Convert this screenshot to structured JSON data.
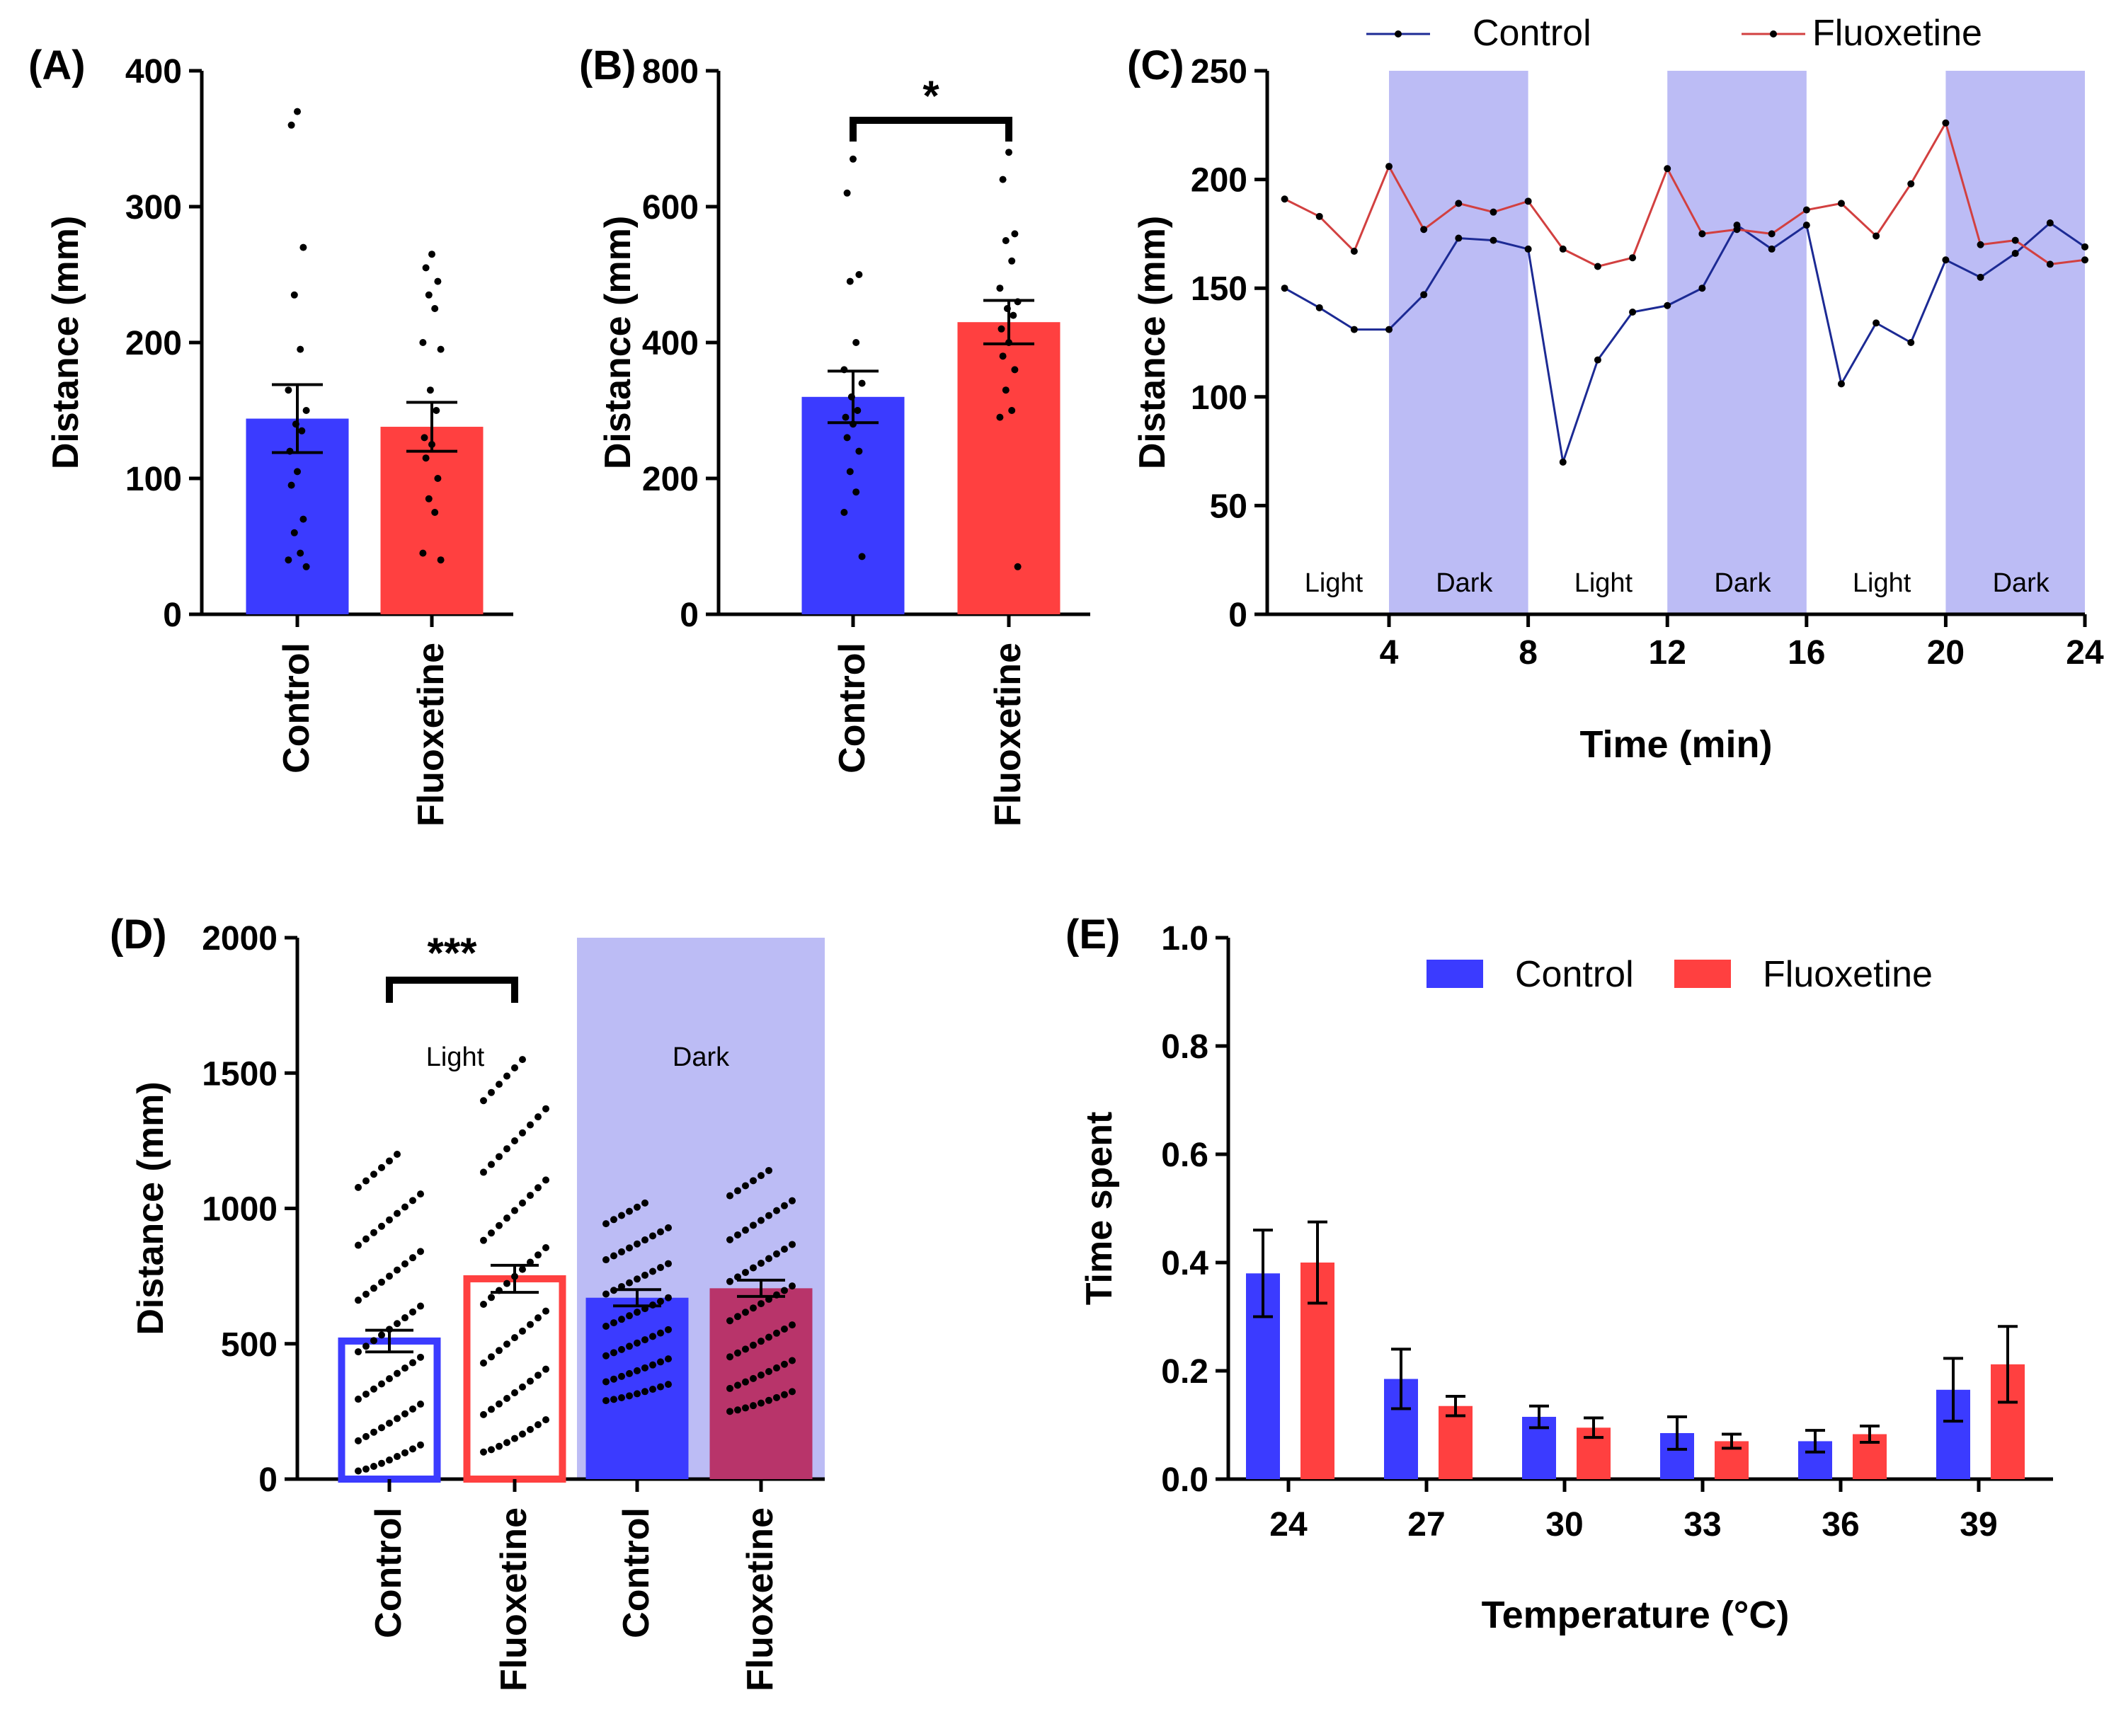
{
  "colors": {
    "control": "#3b3bff",
    "fluoxetine": "#ff4040",
    "dark_shade": "#bcbcf5",
    "control_line": "#1c2a94",
    "fluoxetine_line": "#d24040",
    "dark_fluoxetine": "#b8346a",
    "axis": "#000000"
  },
  "chart_data": [
    {
      "id": "A",
      "panel_label": "(A)",
      "type": "bar",
      "ylabel": "Distance (mm)",
      "ylim": [
        0,
        400
      ],
      "yticks": [
        0,
        100,
        200,
        300,
        400
      ],
      "categories": [
        "Control",
        "Fluoxetine"
      ],
      "values": [
        144,
        138
      ],
      "sem": [
        25,
        18
      ],
      "points": [
        [
          370,
          360,
          270,
          235,
          195,
          165,
          150,
          140,
          135,
          120,
          105,
          95,
          70,
          60,
          45,
          40,
          35
        ],
        [
          265,
          255,
          245,
          235,
          225,
          200,
          195,
          165,
          150,
          130,
          125,
          115,
          100,
          85,
          75,
          45,
          40
        ]
      ]
    },
    {
      "id": "B",
      "panel_label": "(B)",
      "type": "bar",
      "ylabel": "Distance (mm)",
      "ylim": [
        0,
        800
      ],
      "yticks": [
        0,
        200,
        400,
        600,
        800
      ],
      "categories": [
        "Control",
        "Fluoxetine"
      ],
      "values": [
        320,
        430
      ],
      "sem": [
        38,
        32
      ],
      "significance": "*",
      "points": [
        [
          670,
          620,
          500,
          490,
          400,
          360,
          340,
          320,
          300,
          290,
          280,
          260,
          240,
          210,
          180,
          150,
          85
        ],
        [
          680,
          640,
          560,
          550,
          520,
          480,
          460,
          450,
          440,
          420,
          400,
          380,
          360,
          330,
          300,
          290,
          70
        ]
      ]
    },
    {
      "id": "C",
      "panel_label": "(C)",
      "type": "line",
      "xlabel": "Time (min)",
      "ylabel": "Distance (mm)",
      "xlim": [
        0.5,
        24
      ],
      "ylim": [
        0,
        250
      ],
      "xticks": [
        4,
        8,
        12,
        16,
        20,
        24
      ],
      "yticks": [
        0,
        50,
        100,
        150,
        200,
        250
      ],
      "x": [
        1,
        2,
        3,
        4,
        5,
        6,
        7,
        8,
        9,
        10,
        11,
        12,
        13,
        14,
        15,
        16,
        17,
        18,
        19,
        20,
        21,
        22,
        23,
        24
      ],
      "series": [
        {
          "name": "Control",
          "values": [
            150,
            141,
            131,
            131,
            147,
            173,
            172,
            168,
            70,
            117,
            139,
            142,
            150,
            179,
            168,
            179,
            106,
            134,
            125,
            163,
            155,
            166,
            180,
            169
          ]
        },
        {
          "name": "Fluoxetine",
          "values": [
            191,
            183,
            167,
            206,
            177,
            189,
            185,
            190,
            168,
            160,
            164,
            205,
            175,
            177,
            175,
            186,
            189,
            174,
            198,
            226,
            170,
            172,
            161,
            163
          ]
        }
      ],
      "phases": [
        {
          "label": "Light",
          "start": 0.5,
          "end": 4,
          "dark": false
        },
        {
          "label": "Dark",
          "start": 4,
          "end": 8,
          "dark": true
        },
        {
          "label": "Light",
          "start": 8,
          "end": 12,
          "dark": false
        },
        {
          "label": "Dark",
          "start": 12,
          "end": 16,
          "dark": true
        },
        {
          "label": "Light",
          "start": 16,
          "end": 20,
          "dark": false
        },
        {
          "label": "Dark",
          "start": 20,
          "end": 24,
          "dark": true
        }
      ],
      "legend": [
        "Control",
        "Fluoxetine"
      ]
    },
    {
      "id": "D",
      "panel_label": "(D)",
      "type": "bar",
      "ylabel": "Distance (mm)",
      "ylim": [
        0,
        2000
      ],
      "yticks": [
        0,
        500,
        1000,
        1500,
        2000
      ],
      "categories": [
        "Control",
        "Fluoxetine",
        "Control",
        "Fluoxetine"
      ],
      "groups": [
        "Light",
        "Light",
        "Dark",
        "Dark"
      ],
      "group_labels": [
        "Light",
        "Dark"
      ],
      "values": [
        510,
        740,
        670,
        705
      ],
      "sem": [
        40,
        50,
        30,
        30
      ],
      "significance": "***",
      "point_counts": [
        60,
        60,
        60,
        60
      ],
      "point_spread": [
        [
          30,
          1200
        ],
        [
          100,
          1550
        ],
        [
          290,
          1020
        ],
        [
          250,
          1140
        ]
      ]
    },
    {
      "id": "E",
      "panel_label": "(E)",
      "type": "bar",
      "xlabel": "Temperature (°C)",
      "ylabel": "Time spent",
      "ylim": [
        0,
        1.0
      ],
      "yticks": [
        "0.0",
        "0.2",
        "0.4",
        "0.6",
        "0.8",
        "1.0"
      ],
      "categories": [
        "24",
        "27",
        "30",
        "33",
        "36",
        "39"
      ],
      "series": [
        {
          "name": "Control",
          "values": [
            0.38,
            0.185,
            0.115,
            0.085,
            0.07,
            0.165
          ],
          "sem": [
            0.08,
            0.055,
            0.02,
            0.03,
            0.02,
            0.058
          ]
        },
        {
          "name": "Fluoxetine",
          "values": [
            0.4,
            0.135,
            0.095,
            0.07,
            0.083,
            0.212
          ],
          "sem": [
            0.075,
            0.018,
            0.018,
            0.013,
            0.015,
            0.07
          ]
        }
      ],
      "legend": [
        "Control",
        "Fluoxetine"
      ]
    }
  ]
}
